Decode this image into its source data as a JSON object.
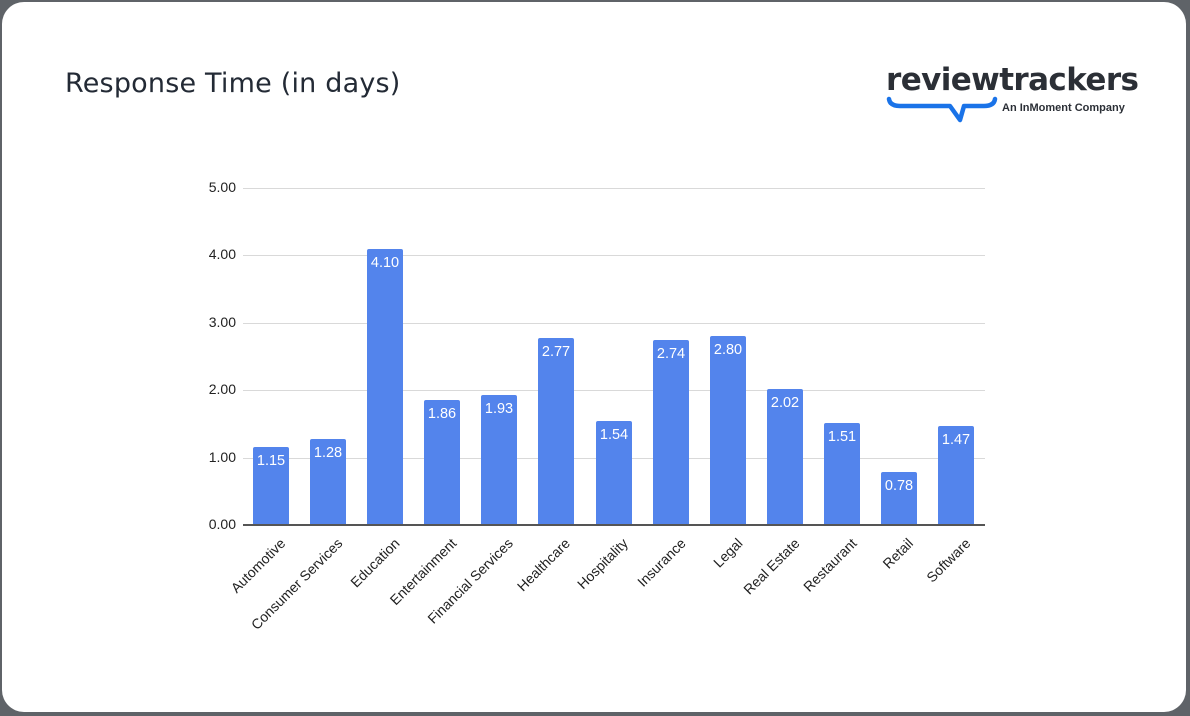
{
  "header": {
    "title": "Response Time (in days)"
  },
  "logo": {
    "wordmark": "reviewtrackers",
    "tagline": "An InMoment Company",
    "accent_color": "#1a73e8"
  },
  "colors": {
    "bar": "#5384ec",
    "gridline": "#d9d9d9",
    "axis": "#555555",
    "title": "#232a35"
  },
  "chart_data": {
    "type": "bar",
    "title": "Response Time (in days)",
    "xlabel": "",
    "ylabel": "",
    "categories": [
      "Automotive",
      "Consumer Services",
      "Education",
      "Entertainment",
      "Financial Services",
      "Healthcare",
      "Hospitality",
      "Insurance",
      "Legal",
      "Real Estate",
      "Restaurant",
      "Retail",
      "Software"
    ],
    "values": [
      1.15,
      1.28,
      4.1,
      1.86,
      1.93,
      2.77,
      1.54,
      2.74,
      2.8,
      2.02,
      1.51,
      0.78,
      1.47
    ],
    "value_labels": [
      "1.15",
      "1.28",
      "4.10",
      "1.86",
      "1.93",
      "2.77",
      "1.54",
      "2.74",
      "2.80",
      "2.02",
      "1.51",
      "0.78",
      "1.47"
    ],
    "yticks": [
      "0.00",
      "1.00",
      "2.00",
      "3.00",
      "4.00",
      "5.00"
    ],
    "ylim": [
      0,
      5
    ],
    "grid": true,
    "legend": "none",
    "data_labels": "inside-top"
  }
}
